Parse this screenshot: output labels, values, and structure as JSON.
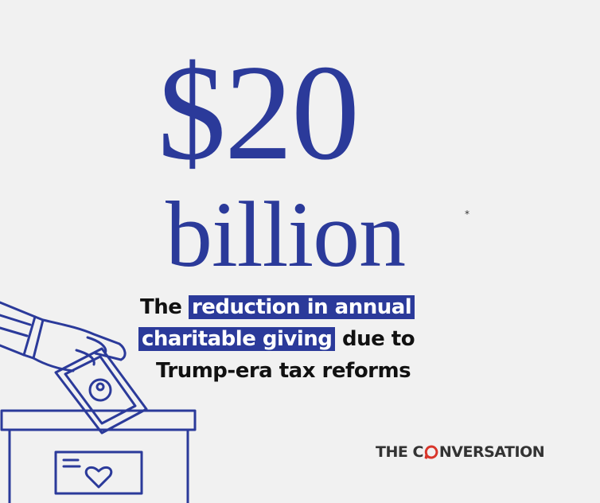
{
  "headline": {
    "amount": "$20",
    "unit": "billion",
    "footnote_mark": "*"
  },
  "caption": {
    "lead": "The",
    "highlight_1": "reduction in annual",
    "highlight_2": "charitable giving",
    "tail_1": "due to",
    "line_3": "Trump-era tax reforms"
  },
  "logo": {
    "before_o": "THE C",
    "after_o": "NVERSATION"
  }
}
